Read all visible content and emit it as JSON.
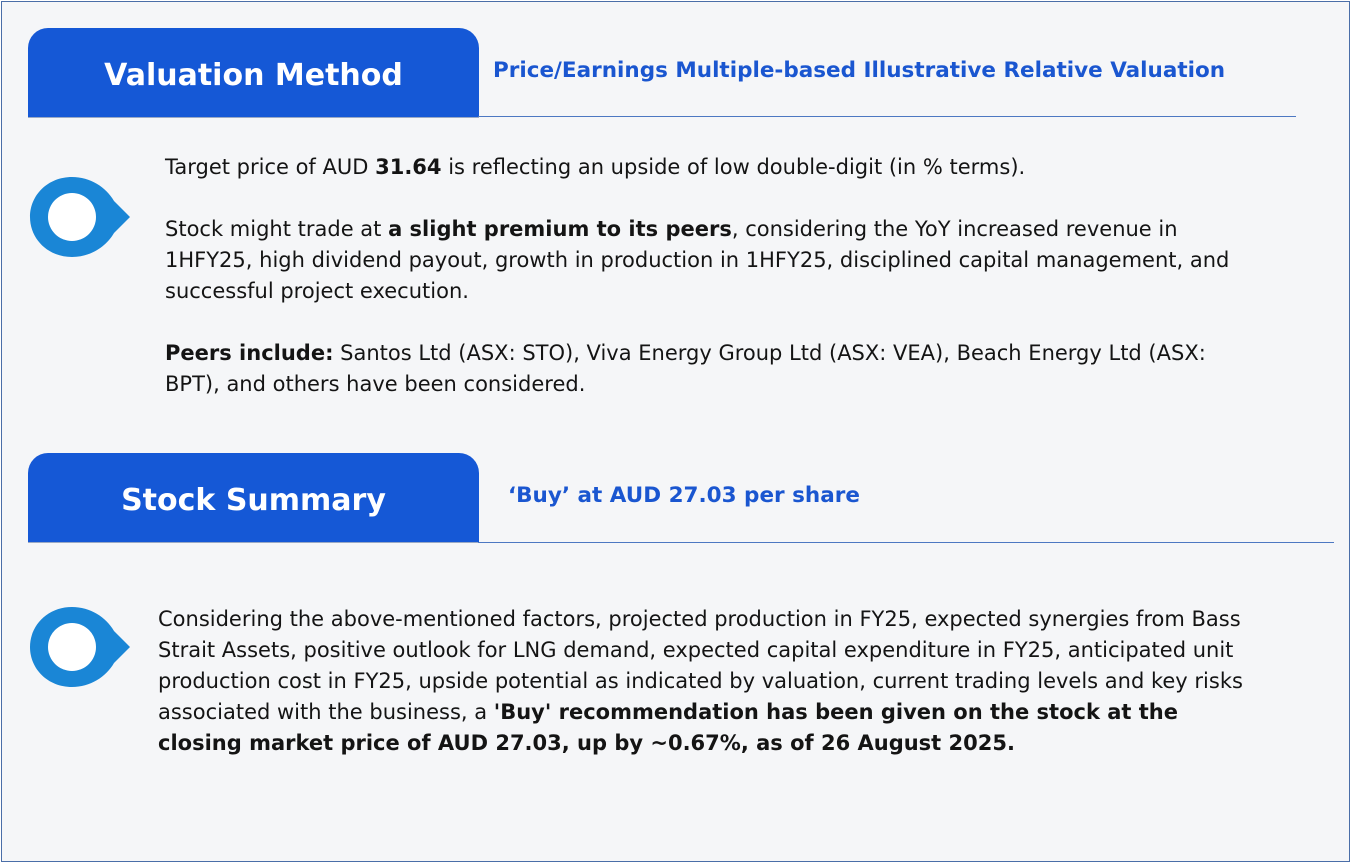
{
  "valuation": {
    "tab_label": "Valuation Method",
    "subtitle": "Price/Earnings Multiple-based Illustrative Relative Valuation",
    "target": {
      "prefix": "Target price of AUD ",
      "price": "31.64",
      "suffix": " is reflecting an upside of low double-digit (in % terms)."
    },
    "premium": {
      "prefix": "Stock might trade at ",
      "bold": "a slight premium to its peers",
      "suffix": ", considering the YoY increased revenue in 1HFY25, high dividend payout, growth in production in 1HFY25, disciplined capital management, and successful project execution."
    },
    "peers": {
      "label": "Peers include:",
      "text": " Santos Ltd (ASX: STO), Viva Energy Group Ltd (ASX: VEA), Beach Energy Ltd (ASX: BPT), and others have been considered."
    }
  },
  "summary": {
    "tab_label": "Stock Summary",
    "subtitle": "‘Buy’ at AUD 27.03 per share",
    "text": "Considering the above-mentioned factors, projected production in FY25, expected synergies from Bass Strait Assets, positive outlook for LNG demand, expected capital expenditure in FY25, anticipated unit production cost in FY25, upside potential as indicated by valuation, current trading levels and key risks associated with the business, a ",
    "bold": "'Buy' recommendation has been given on the stock at the closing market price of AUD 27.03, up by ~0.67%, as of 26 August 2025."
  },
  "colors": {
    "tab_blue": "#1558d6",
    "pin_blue": "#1a86d6",
    "subtitle_blue": "#1a56d0"
  },
  "icons": [
    "location-pin-icon",
    "location-pin-icon"
  ]
}
